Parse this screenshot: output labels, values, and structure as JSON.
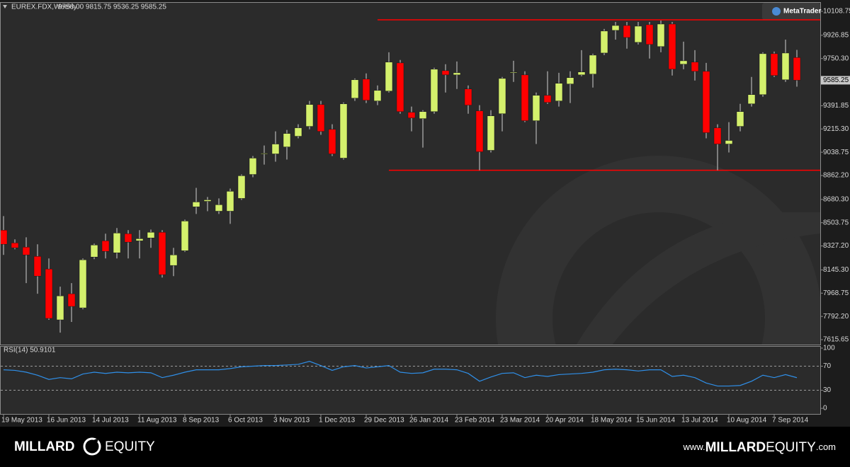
{
  "chart_data": [
    {
      "type": "candlestick",
      "title": "EUREX.FDX,Weekly",
      "subtitle": "9758.00 9815.75 9536.25 9585.25",
      "badge": "MetaTrader",
      "categories": [
        "19 May 2013",
        null,
        null,
        null,
        "16 Jun 2013",
        null,
        null,
        null,
        "14 Jul 2013",
        null,
        null,
        null,
        "11 Aug 2013",
        null,
        null,
        null,
        "8 Sep 2013",
        null,
        null,
        null,
        "6 Oct 2013",
        null,
        null,
        null,
        "3 Nov 2013",
        null,
        null,
        null,
        "1 Dec 2013",
        null,
        null,
        null,
        "29 Dec 2013",
        null,
        null,
        null,
        "26 Jan 2014",
        null,
        null,
        null,
        "23 Feb 2014",
        null,
        null,
        null,
        "23 Mar 2014",
        null,
        null,
        null,
        "20 Apr 2014",
        null,
        null,
        null,
        "18 May 2014",
        null,
        null,
        null,
        "15 Jun 2014",
        null,
        null,
        null,
        "13 Jul 2014",
        null,
        null,
        null,
        "10 Aug 2014",
        null,
        null,
        null,
        "7 Sep 2014",
        null,
        null
      ],
      "open": [
        8447,
        8350,
        8318,
        8248,
        8152,
        7766,
        7964,
        7857,
        8243,
        8366,
        8275,
        8420,
        8366,
        8388,
        8431,
        8179,
        8291,
        8624,
        8666,
        8591,
        8591,
        8688,
        8870,
        9026,
        9026,
        9079,
        9160,
        9235,
        9401,
        9213,
        8994,
        9449,
        9594,
        9428,
        9503,
        9717,
        9342,
        9294,
        9347,
        9658,
        9626,
        9519,
        9353,
        9053,
        9331,
        9642,
        9626,
        9278,
        9471,
        9428,
        9557,
        9626,
        9632,
        9792,
        9964,
        10001,
        9873,
        10007,
        9841,
        10012,
        9707,
        9723,
        9653,
        9224,
        9101,
        9235,
        9406,
        9476,
        9787,
        9589,
        9758
      ],
      "high": [
        8554,
        8377,
        8393,
        8340,
        8232,
        8018,
        8045,
        8232,
        8345,
        8420,
        8463,
        8447,
        8447,
        8452,
        8447,
        8313,
        8527,
        8768,
        8699,
        8688,
        8763,
        8870,
        9010,
        9090,
        9197,
        9208,
        9251,
        9428,
        9428,
        9251,
        9417,
        9599,
        9637,
        9546,
        9798,
        9739,
        9385,
        9358,
        9680,
        9707,
        9728,
        9546,
        9396,
        9358,
        9610,
        9733,
        9653,
        9492,
        9653,
        9642,
        9653,
        9814,
        9787,
        9975,
        10028,
        10028,
        10028,
        10028,
        10039,
        10028,
        9878,
        9814,
        9717,
        9251,
        9267,
        9406,
        9610,
        9798,
        9803,
        9894,
        9815.75
      ],
      "low": [
        8259,
        8302,
        8045,
        7964,
        7766,
        7669,
        7750,
        7846,
        8227,
        8232,
        8232,
        8232,
        8232,
        8313,
        8087,
        8098,
        8281,
        8570,
        8591,
        8570,
        8495,
        8677,
        8849,
        8945,
        8967,
        8983,
        9144,
        9213,
        9171,
        9010,
        8983,
        9428,
        9412,
        9396,
        9492,
        9331,
        9197,
        9074,
        9331,
        9492,
        9519,
        9331,
        8902,
        9037,
        9197,
        9573,
        9267,
        9101,
        9406,
        9385,
        9412,
        9616,
        9530,
        9776,
        9894,
        9825,
        9857,
        9750,
        9798,
        9621,
        9669,
        9583,
        9144,
        8902,
        9037,
        9197,
        9385,
        9460,
        9610,
        9573,
        9536.25
      ],
      "close": [
        8340,
        8313,
        8259,
        8098,
        7777,
        7948,
        7868,
        8222,
        8334,
        8286,
        8425,
        8356,
        8382,
        8431,
        8109,
        8259,
        8516,
        8661,
        8677,
        8640,
        8742,
        8860,
        8994,
        9031,
        9101,
        9181,
        9224,
        9401,
        9197,
        9026,
        9406,
        9589,
        9433,
        9508,
        9723,
        9347,
        9299,
        9347,
        9669,
        9626,
        9642,
        9396,
        9042,
        9315,
        9599,
        9648,
        9278,
        9471,
        9417,
        9562,
        9605,
        9648,
        9776,
        9959,
        10001,
        9910,
        9996,
        9857,
        10012,
        9669,
        9733,
        9653,
        9187,
        9101,
        9128,
        9347,
        9476,
        9787,
        9621,
        9792,
        9585.25
      ],
      "up_color": "#d4f06c",
      "down_color": "#ff0000",
      "wick_color": "#d0d0d0",
      "ylim": [
        7578.1,
        10173.1
      ],
      "yticks": [
        10108.75,
        9926.85,
        {
          "value": 9750.3,
          "label": "9750.30"
        },
        9391.85,
        {
          "value": 9215.3,
          "label": "9215.30"
        },
        9038.75,
        {
          "value": 8862.2,
          "label": "8862.20"
        },
        {
          "value": 8680.3,
          "label": "8680.30"
        },
        8503.75,
        {
          "value": 8327.2,
          "label": "8327.20"
        },
        {
          "value": 8145.3,
          "label": "8145.30"
        },
        7968.75,
        {
          "value": 7792.2,
          "label": "7792.20"
        },
        7615.65
      ],
      "hlines": [
        {
          "value": 10044,
          "color": "#ff0000",
          "start": 33
        },
        {
          "value": 8902,
          "color": "#ff0000",
          "start": 34
        }
      ]
    },
    {
      "type": "line",
      "title": "RSI(14) 50.9101",
      "color": "#2f8fe8",
      "values": [
        64,
        63,
        60,
        55,
        48,
        51,
        49,
        57,
        60,
        58,
        60,
        59,
        60,
        59,
        51,
        55,
        60,
        64,
        64,
        64,
        66,
        69,
        70,
        71,
        71,
        72,
        73,
        78,
        71,
        63,
        69,
        71,
        67,
        69,
        71,
        60,
        58,
        59,
        65,
        65,
        64,
        58,
        45,
        52,
        58,
        59,
        51,
        55,
        53,
        56,
        57,
        58,
        60,
        64,
        65,
        64,
        62,
        64,
        64,
        53,
        55,
        51,
        42,
        37,
        37,
        38,
        45,
        55,
        51,
        56,
        50.9101
      ],
      "ylim": [
        -9.3,
        102.3
      ],
      "yticks": [
        100,
        70,
        30,
        0
      ],
      "levels": [
        70,
        30
      ]
    }
  ],
  "footer": {
    "left_brand": "MILLARD",
    "left_suffix": "EQUITY",
    "url_prefix": "www.",
    "url_brand": "MILLARD",
    "url_suffix": "EQUITY",
    "url_tld": ".com"
  }
}
